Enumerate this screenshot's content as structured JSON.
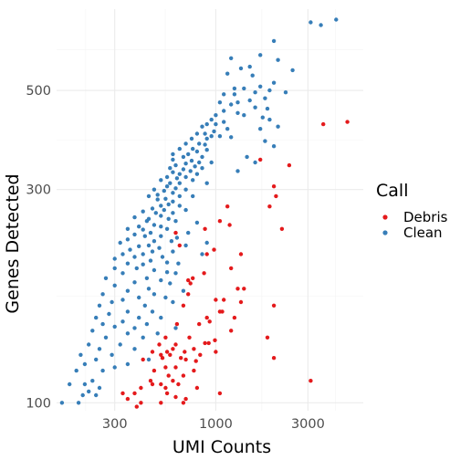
{
  "chart_data": {
    "type": "scatter",
    "title": "",
    "xlabel": "UMI Counts",
    "ylabel": "Genes Detected",
    "x_scale": "log10",
    "y_scale": "log10",
    "xlim": [
      150,
      5800
    ],
    "ylim": [
      96,
      760
    ],
    "x_ticks": [
      300,
      1000,
      3000
    ],
    "x_tick_labels": [
      "300",
      "1000",
      "3000"
    ],
    "y_ticks": [
      100,
      300,
      500
    ],
    "y_tick_labels": [
      "100",
      "300",
      "500"
    ],
    "grid": true,
    "legend": {
      "title": "Call",
      "position": "right",
      "entries": [
        {
          "label": "Debris",
          "color": "#E41A1C"
        },
        {
          "label": "Clean",
          "color": "#377EB8"
        }
      ]
    },
    "series": [
      {
        "name": "Debris",
        "color": "#E41A1C",
        "points": [
          [
            3600,
            420
          ],
          [
            4800,
            425
          ],
          [
            1700,
            350
          ],
          [
            2400,
            340
          ],
          [
            2000,
            305
          ],
          [
            2050,
            290
          ],
          [
            1900,
            275
          ],
          [
            1150,
            275
          ],
          [
            1050,
            255
          ],
          [
            1180,
            250
          ],
          [
            2200,
            245
          ],
          [
            880,
            245
          ],
          [
            620,
            240
          ],
          [
            650,
            225
          ],
          [
            980,
            220
          ],
          [
            900,
            215
          ],
          [
            1350,
            215
          ],
          [
            870,
            195
          ],
          [
            760,
            190
          ],
          [
            720,
            188
          ],
          [
            1200,
            200
          ],
          [
            740,
            185
          ],
          [
            1300,
            180
          ],
          [
            1400,
            180
          ],
          [
            720,
            175
          ],
          [
            1000,
            170
          ],
          [
            1100,
            170
          ],
          [
            1350,
            168
          ],
          [
            680,
            165
          ],
          [
            2000,
            165
          ],
          [
            1050,
            160
          ],
          [
            1080,
            160
          ],
          [
            1250,
            155
          ],
          [
            900,
            155
          ],
          [
            930,
            152
          ],
          [
            630,
            150
          ],
          [
            820,
            150
          ],
          [
            1200,
            145
          ],
          [
            550,
            140
          ],
          [
            1850,
            140
          ],
          [
            730,
            140
          ],
          [
            990,
            138
          ],
          [
            880,
            136
          ],
          [
            920,
            136
          ],
          [
            620,
            135
          ],
          [
            510,
            135
          ],
          [
            600,
            132
          ],
          [
            770,
            132
          ],
          [
            560,
            130
          ],
          [
            470,
            130
          ],
          [
            690,
            130
          ],
          [
            1000,
            130
          ],
          [
            580,
            128
          ],
          [
            520,
            128
          ],
          [
            660,
            126
          ],
          [
            830,
            128
          ],
          [
            530,
            126
          ],
          [
            420,
            125
          ],
          [
            700,
            125
          ],
          [
            2000,
            126
          ],
          [
            790,
            124
          ],
          [
            620,
            120
          ],
          [
            550,
            120
          ],
          [
            480,
            118
          ],
          [
            570,
            115
          ],
          [
            770,
            118
          ],
          [
            680,
            115
          ],
          [
            460,
            112
          ],
          [
            520,
            110
          ],
          [
            470,
            110
          ],
          [
            600,
            112
          ],
          [
            410,
            108
          ],
          [
            640,
            110
          ],
          [
            550,
            108
          ],
          [
            800,
            108
          ],
          [
            560,
            105
          ],
          [
            1050,
            105
          ],
          [
            330,
            105
          ],
          [
            350,
            102
          ],
          [
            380,
            105
          ],
          [
            3100,
            112
          ],
          [
            620,
            103
          ],
          [
            700,
            102
          ],
          [
            680,
            100
          ],
          [
            410,
            100
          ],
          [
            520,
            100
          ],
          [
            390,
            98
          ]
        ]
      },
      {
        "name": "Clean",
        "color": "#377EB8",
        "points": [
          [
            4200,
            720
          ],
          [
            3100,
            710
          ],
          [
            3500,
            700
          ],
          [
            2000,
            645
          ],
          [
            1700,
            600
          ],
          [
            2100,
            585
          ],
          [
            1200,
            590
          ],
          [
            1350,
            560
          ],
          [
            1500,
            565
          ],
          [
            2500,
            555
          ],
          [
            1150,
            545
          ],
          [
            1550,
            540
          ],
          [
            2000,
            520
          ],
          [
            1700,
            510
          ],
          [
            1400,
            505
          ],
          [
            1250,
            505
          ],
          [
            1900,
            500
          ],
          [
            2300,
            495
          ],
          [
            1600,
            495
          ],
          [
            1100,
            490
          ],
          [
            1250,
            490
          ],
          [
            1800,
            480
          ],
          [
            1500,
            475
          ],
          [
            1300,
            470
          ],
          [
            1050,
            470
          ],
          [
            1200,
            465
          ],
          [
            1600,
            458
          ],
          [
            1850,
            455
          ],
          [
            1100,
            450
          ],
          [
            1300,
            445
          ],
          [
            1000,
            440
          ],
          [
            1400,
            440
          ],
          [
            1750,
            435
          ],
          [
            1900,
            430
          ],
          [
            950,
            430
          ],
          [
            1100,
            425
          ],
          [
            900,
            420
          ],
          [
            1000,
            420
          ],
          [
            850,
            415
          ],
          [
            2100,
            415
          ],
          [
            1150,
            410
          ],
          [
            1700,
            410
          ],
          [
            980,
            405
          ],
          [
            880,
            400
          ],
          [
            800,
            400
          ],
          [
            950,
            395
          ],
          [
            1050,
            395
          ],
          [
            1200,
            393
          ],
          [
            900,
            390
          ],
          [
            750,
            390
          ],
          [
            1800,
            385
          ],
          [
            820,
            380
          ],
          [
            700,
            380
          ],
          [
            880,
            378
          ],
          [
            2000,
            375
          ],
          [
            760,
            370
          ],
          [
            650,
            370
          ],
          [
            900,
            368
          ],
          [
            800,
            365
          ],
          [
            600,
            360
          ],
          [
            1450,
            355
          ],
          [
            720,
            360
          ],
          [
            680,
            355
          ],
          [
            850,
            355
          ],
          [
            600,
            350
          ],
          [
            750,
            348
          ],
          [
            820,
            345
          ],
          [
            950,
            345
          ],
          [
            1600,
            345
          ],
          [
            700,
            343
          ],
          [
            780,
            338
          ],
          [
            620,
            340
          ],
          [
            580,
            335
          ],
          [
            850,
            335
          ],
          [
            680,
            333
          ],
          [
            1300,
            330
          ],
          [
            740,
            330
          ],
          [
            600,
            328
          ],
          [
            650,
            325
          ],
          [
            800,
            325
          ],
          [
            560,
            320
          ],
          [
            700,
            320
          ],
          [
            630,
            318
          ],
          [
            760,
            315
          ],
          [
            520,
            315
          ],
          [
            580,
            310
          ],
          [
            650,
            310
          ],
          [
            900,
            310
          ],
          [
            560,
            305
          ],
          [
            620,
            302
          ],
          [
            480,
            300
          ],
          [
            700,
            300
          ],
          [
            540,
            298
          ],
          [
            600,
            295
          ],
          [
            500,
            292
          ],
          [
            650,
            290
          ],
          [
            760,
            290
          ],
          [
            450,
            290
          ],
          [
            550,
            286
          ],
          [
            500,
            285
          ],
          [
            600,
            282
          ],
          [
            570,
            278
          ],
          [
            520,
            276
          ],
          [
            650,
            276
          ],
          [
            470,
            272
          ],
          [
            540,
            270
          ],
          [
            700,
            270
          ],
          [
            420,
            268
          ],
          [
            490,
            266
          ],
          [
            600,
            266
          ],
          [
            520,
            262
          ],
          [
            380,
            260
          ],
          [
            450,
            258
          ],
          [
            570,
            258
          ],
          [
            440,
            255
          ],
          [
            620,
            255
          ],
          [
            800,
            253
          ],
          [
            480,
            250
          ],
          [
            520,
            248
          ],
          [
            400,
            248
          ],
          [
            560,
            245
          ],
          [
            350,
            245
          ],
          [
            420,
            244
          ],
          [
            460,
            240
          ],
          [
            720,
            240
          ],
          [
            380,
            238
          ],
          [
            430,
            236
          ],
          [
            520,
            236
          ],
          [
            630,
            234
          ],
          [
            350,
            232
          ],
          [
            480,
            230
          ],
          [
            590,
            230
          ],
          [
            900,
            228
          ],
          [
            320,
            228
          ],
          [
            450,
            225
          ],
          [
            400,
            224
          ],
          [
            700,
            225
          ],
          [
            510,
            222
          ],
          [
            360,
            220
          ],
          [
            470,
            218
          ],
          [
            600,
            218
          ],
          [
            330,
            215
          ],
          [
            420,
            215
          ],
          [
            850,
            215
          ],
          [
            380,
            212
          ],
          [
            530,
            212
          ],
          [
            300,
            210
          ],
          [
            460,
            208
          ],
          [
            560,
            206
          ],
          [
            350,
            205
          ],
          [
            420,
            204
          ],
          [
            640,
            205
          ],
          [
            300,
            200
          ],
          [
            390,
            200
          ],
          [
            480,
            198
          ],
          [
            560,
            196
          ],
          [
            330,
            195
          ],
          [
            620,
            195
          ],
          [
            440,
            190
          ],
          [
            270,
            190
          ],
          [
            520,
            188
          ],
          [
            380,
            186
          ],
          [
            580,
            185
          ],
          [
            300,
            183
          ],
          [
            450,
            180
          ],
          [
            350,
            178
          ],
          [
            680,
            178
          ],
          [
            260,
            175
          ],
          [
            480,
            175
          ],
          [
            400,
            172
          ],
          [
            550,
            172
          ],
          [
            330,
            170
          ],
          [
            290,
            168
          ],
          [
            430,
            165
          ],
          [
            250,
            165
          ],
          [
            600,
            168
          ],
          [
            350,
            160
          ],
          [
            470,
            160
          ],
          [
            280,
            158
          ],
          [
            400,
            155
          ],
          [
            520,
            155
          ],
          [
            240,
            155
          ],
          [
            330,
            152
          ],
          [
            260,
            150
          ],
          [
            440,
            150
          ],
          [
            300,
            148
          ],
          [
            380,
            147
          ],
          [
            620,
            147
          ],
          [
            230,
            145
          ],
          [
            350,
            143
          ],
          [
            500,
            143
          ],
          [
            270,
            140
          ],
          [
            420,
            140
          ],
          [
            220,
            135
          ],
          [
            320,
            135
          ],
          [
            250,
            132
          ],
          [
            200,
            128
          ],
          [
            380,
            132
          ],
          [
            290,
            128
          ],
          [
            240,
            125
          ],
          [
            450,
            125
          ],
          [
            210,
            122
          ],
          [
            350,
            122
          ],
          [
            300,
            120
          ],
          [
            190,
            118
          ],
          [
            260,
            118
          ],
          [
            230,
            112
          ],
          [
            210,
            110
          ],
          [
            175,
            110
          ],
          [
            250,
            108
          ],
          [
            220,
            106
          ],
          [
            205,
            104
          ],
          [
            240,
            104
          ],
          [
            195,
            100
          ],
          [
            160,
            100
          ]
        ]
      }
    ]
  }
}
